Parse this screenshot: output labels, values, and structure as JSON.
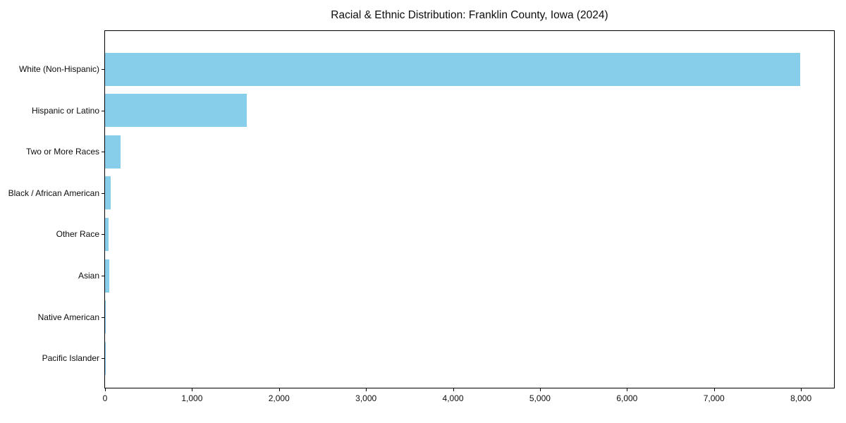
{
  "chart_data": {
    "type": "bar",
    "orientation": "horizontal",
    "title": "Racial & Ethnic Distribution: Franklin County, Iowa (2024)",
    "categories": [
      "White (Non-Hispanic)",
      "Hispanic or Latino",
      "Two or More Races",
      "Black / African American",
      "Other Race",
      "Asian",
      "Native American",
      "Pacific Islander"
    ],
    "values": [
      7990,
      1630,
      180,
      65,
      40,
      45,
      10,
      5
    ],
    "xlabel": "",
    "ylabel": "",
    "xlim": [
      0,
      8380
    ],
    "xticks": [
      0,
      1000,
      2000,
      3000,
      4000,
      5000,
      6000,
      7000,
      8000
    ],
    "xtick_labels": [
      "0",
      "1,000",
      "2,000",
      "3,000",
      "4,000",
      "5,000",
      "6,000",
      "7,000",
      "8,000"
    ],
    "bar_color": "#87CEEB",
    "axis_color": "#000000",
    "grid": false,
    "legend": "none"
  }
}
